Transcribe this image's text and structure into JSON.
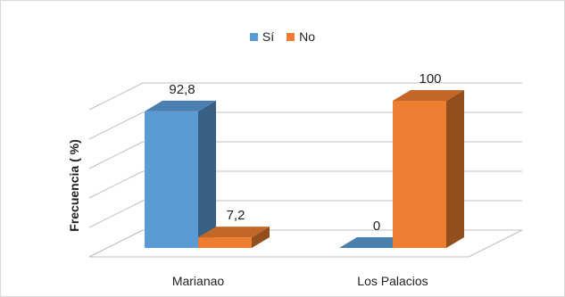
{
  "chart_data": {
    "type": "bar",
    "categories": [
      "Marianao",
      "Los Palacios"
    ],
    "series": [
      {
        "name": "Sí",
        "values": [
          92.8,
          0
        ],
        "labels": [
          "92,8",
          "0"
        ],
        "color": "#5B9BD5"
      },
      {
        "name": "No",
        "values": [
          7.2,
          100
        ],
        "labels": [
          "7,2",
          "100"
        ],
        "color": "#ED7D31"
      }
    ],
    "ylabel": "Frecuencia ( %)",
    "ylim": [
      0,
      100
    ],
    "grid": true,
    "legend_position": "top",
    "style": "3d-clustered-column"
  }
}
